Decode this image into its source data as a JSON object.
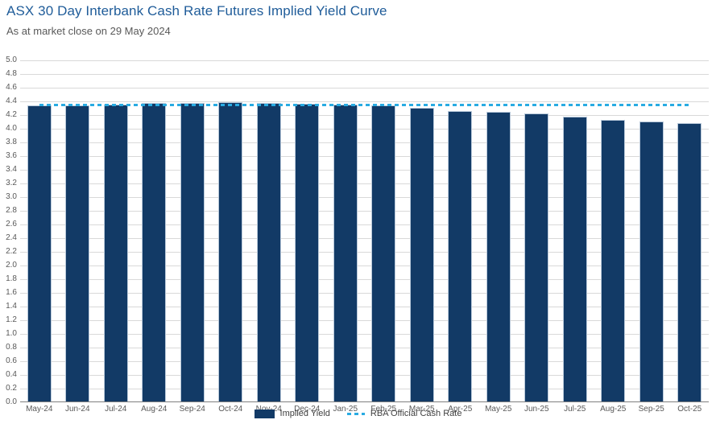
{
  "header": {
    "title": "ASX 30 Day Interbank Cash Rate Futures Implied Yield Curve",
    "subtitle": "As at market close on 29 May 2024"
  },
  "colors": {
    "title": "#1F5C99",
    "subtitle": "#595959",
    "axis_label": "#595959",
    "axis_line": "#808080",
    "gridline": "#D9D9D9",
    "bar_fill": "#123A66",
    "bar_edge": "#B9C9DA",
    "rba_line": "#29ABE2",
    "legend_text": "#404040"
  },
  "chart_data": {
    "type": "bar",
    "title": "ASX 30 Day Interbank Cash Rate Futures Implied Yield Curve",
    "subtitle": "As at market close on 29 May 2024",
    "xlabel": "",
    "ylabel": "",
    "ylim": [
      0.0,
      5.0
    ],
    "ytick_step": 0.2,
    "grid": true,
    "legend_position": "bottom",
    "categories": [
      "May-24",
      "Jun-24",
      "Jul-24",
      "Aug-24",
      "Sep-24",
      "Oct-24",
      "Nov-24",
      "Dec-24",
      "Jan-25",
      "Feb-25",
      "Mar-25",
      "Apr-25",
      "May-25",
      "Jun-25",
      "Jul-25",
      "Aug-25",
      "Sep-25",
      "Oct-25"
    ],
    "series": [
      {
        "name": "Implied Yield",
        "type": "bar",
        "values": [
          4.33,
          4.33,
          4.34,
          4.36,
          4.37,
          4.38,
          4.37,
          4.35,
          4.34,
          4.33,
          4.29,
          4.25,
          4.24,
          4.21,
          4.16,
          4.12,
          4.1,
          4.07
        ]
      },
      {
        "name": "RBA Official Cash Rate",
        "type": "line",
        "style": "dashed",
        "value": 4.35
      }
    ]
  },
  "legend": {
    "implied_yield_label": "Implied Yield",
    "rba_label": "RBA Official Cash Rate"
  }
}
